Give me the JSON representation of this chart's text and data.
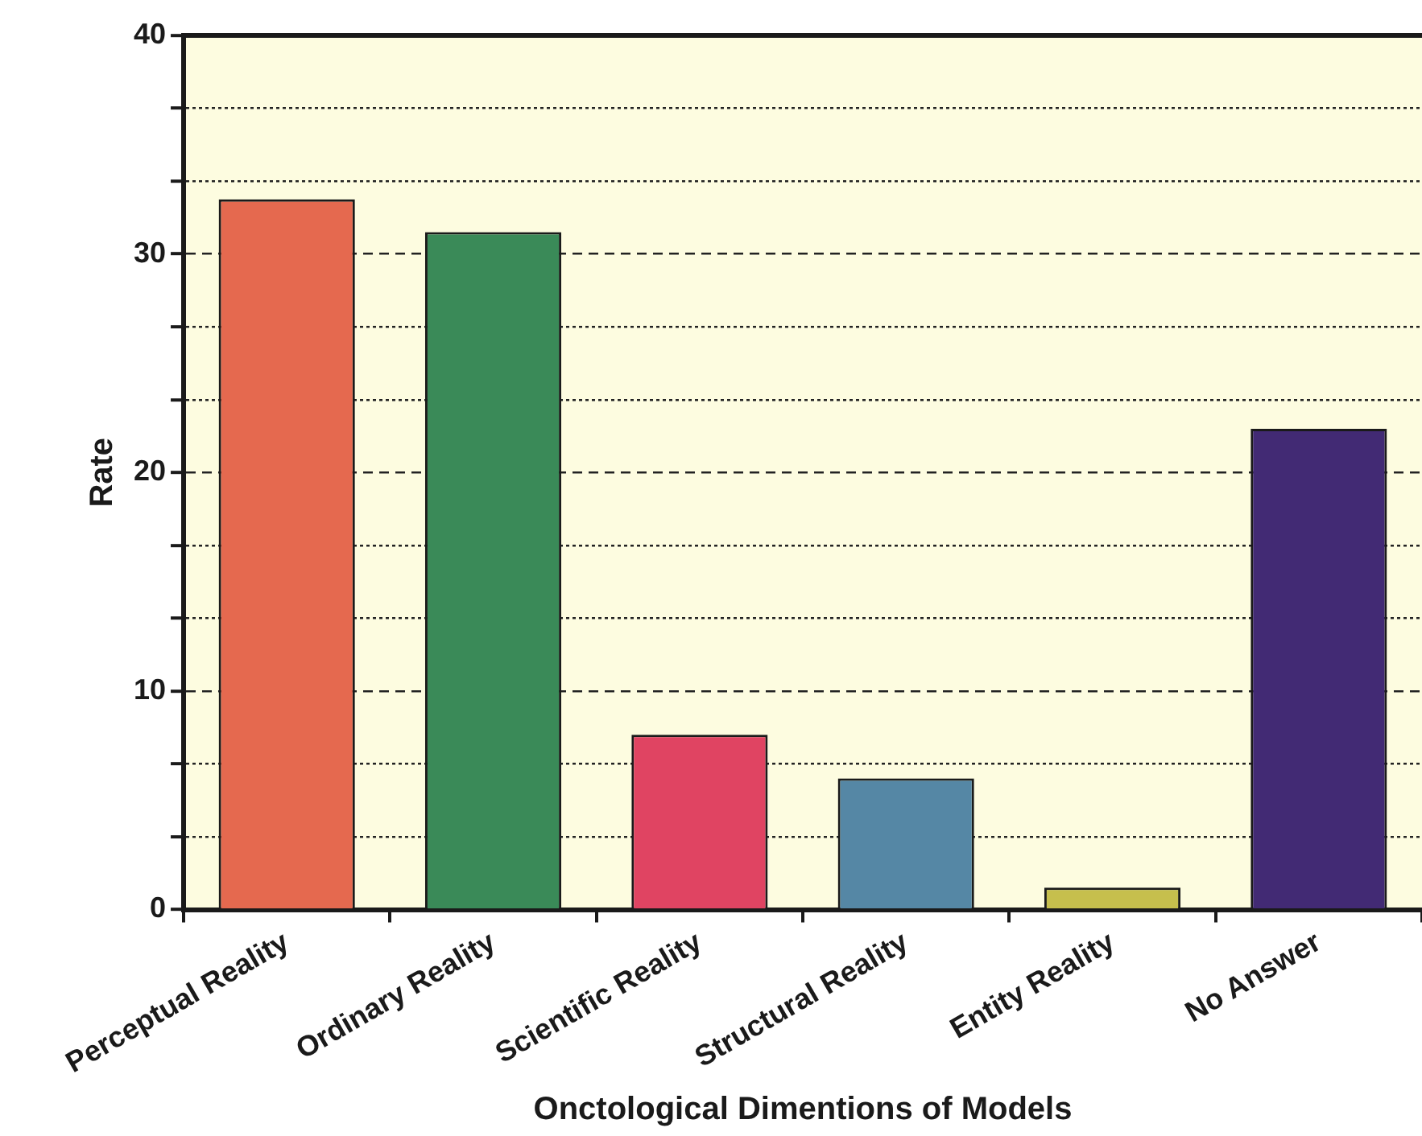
{
  "chart_data": {
    "type": "bar",
    "xlabel": "Onctological Dimentions of Models",
    "ylabel": "Rate",
    "categories": [
      "Perceptual Reality",
      "Ordinary Reality",
      "Scientific Reality",
      "Structural Reality",
      "Entity Reality",
      "No Answer"
    ],
    "values": [
      32.5,
      31,
      8,
      6,
      1,
      22
    ],
    "colors": [
      "#e5694f",
      "#3a8a58",
      "#e04462",
      "#5587a5",
      "#c6bf4d",
      "#422a74"
    ],
    "ylim": [
      0,
      40
    ],
    "yticks": [
      0,
      {
        "value": 3.33,
        "label": null
      },
      {
        "value": 6.67,
        "label": null
      },
      10,
      {
        "value": 13.33,
        "label": null
      },
      {
        "value": 16.67,
        "label": null
      },
      20,
      {
        "value": 23.33,
        "label": null
      },
      {
        "value": 26.67,
        "label": null
      },
      30,
      {
        "value": 33.33,
        "label": null
      },
      {
        "value": 36.67,
        "label": null
      },
      40
    ],
    "grid": "y",
    "legend": false
  }
}
